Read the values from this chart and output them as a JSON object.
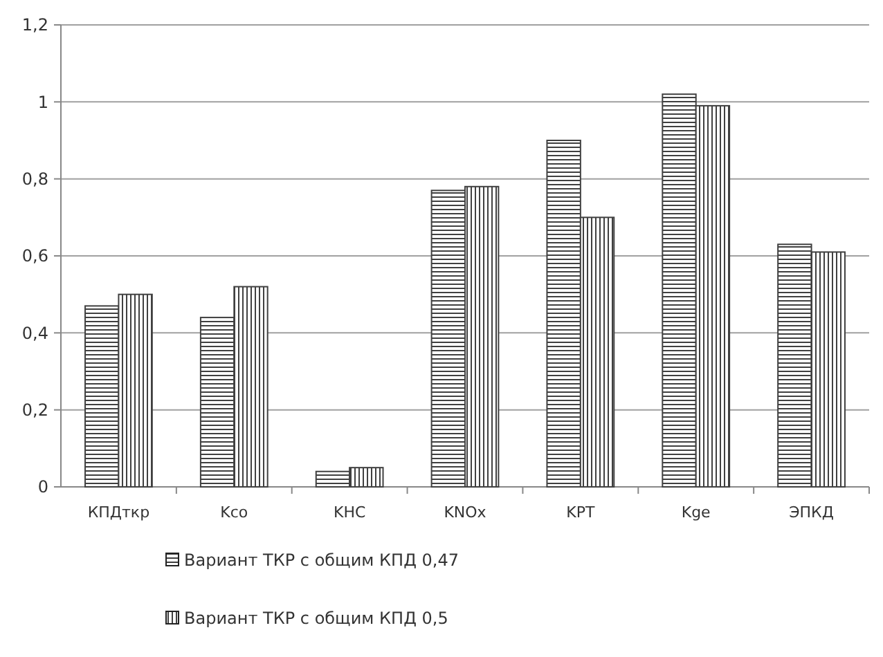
{
  "chart_data": {
    "type": "bar",
    "categories": [
      "КПДткр",
      "Kco",
      "KHC",
      "KNOx",
      "KPT",
      "Kge",
      "ЭПКД"
    ],
    "series": [
      {
        "name": "Вариант ТКР с общим КПД 0,47",
        "color": "#404040",
        "values": [
          0.47,
          0.44,
          0.04,
          0.77,
          0.9,
          1.02,
          0.63
        ]
      },
      {
        "name": "Вариант ТКР с общим КПД 0,5",
        "color": "#404040",
        "values": [
          0.5,
          0.52,
          0.05,
          0.78,
          0.7,
          0.99,
          0.61
        ]
      }
    ],
    "ylim": [
      0,
      1.2
    ],
    "yticks": [
      0,
      {
        "value": 0.2,
        "label": "0,2"
      },
      {
        "value": 0.4,
        "label": "0,4"
      },
      {
        "value": 0.6,
        "label": "0,6"
      },
      {
        "value": 0.8,
        "label": "0,8"
      },
      1,
      {
        "value": 1.2,
        "label": "1,2"
      }
    ],
    "grid": "y",
    "legend": "bottom"
  }
}
